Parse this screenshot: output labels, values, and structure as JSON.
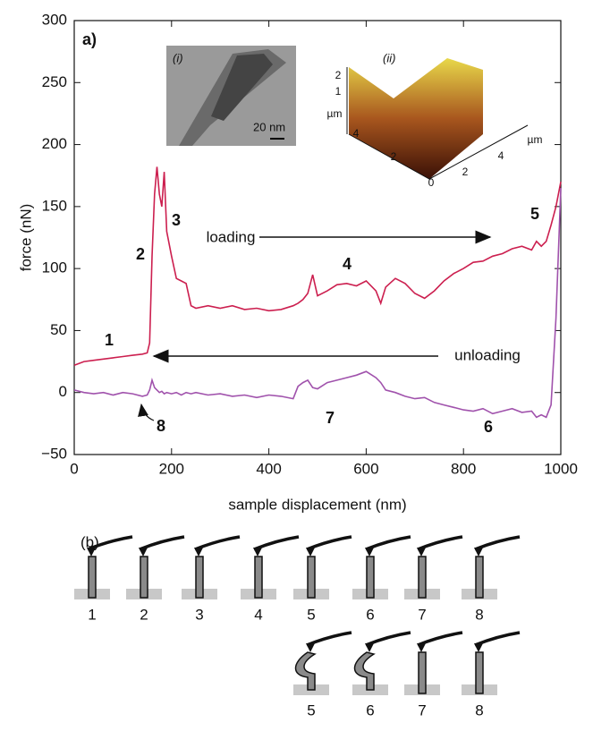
{
  "chart_data": {
    "type": "line",
    "x_label": "sample displacement (nm)",
    "y_label": "force (nN)",
    "xlim": [
      0,
      1000
    ],
    "xticks": [
      0,
      200,
      400,
      600,
      800,
      1000
    ],
    "ylim": [
      -50,
      300
    ],
    "yticks": [
      {
        "value": -50,
        "label": "−50"
      },
      0,
      50,
      100,
      150,
      200,
      250,
      300
    ],
    "x": [
      0,
      20,
      40,
      60,
      80,
      100,
      120,
      140,
      150,
      155,
      160,
      165,
      170,
      175,
      180,
      185,
      190,
      200,
      210,
      220,
      230,
      240,
      250,
      275,
      300,
      325,
      350,
      375,
      400,
      425,
      450,
      460,
      470,
      480,
      490,
      500,
      520,
      540,
      560,
      580,
      600,
      620,
      630,
      640,
      660,
      680,
      700,
      720,
      740,
      760,
      780,
      800,
      820,
      840,
      860,
      880,
      900,
      920,
      940,
      950,
      960,
      970,
      980,
      990,
      1000
    ],
    "series": [
      {
        "color": "#cc1f4f",
        "values": [
          22,
          25,
          26,
          27,
          28,
          29,
          30,
          31,
          32,
          40,
          110,
          160,
          182,
          160,
          150,
          178,
          130,
          110,
          92,
          90,
          88,
          70,
          68,
          70,
          68,
          70,
          67,
          68,
          66,
          67,
          70,
          72,
          75,
          80,
          95,
          78,
          82,
          87,
          88,
          86,
          90,
          82,
          72,
          85,
          92,
          88,
          80,
          76,
          82,
          90,
          96,
          100,
          105,
          106,
          110,
          112,
          116,
          118,
          115,
          122,
          118,
          122,
          135,
          150,
          170
        ]
      },
      {
        "color": "#a052ac",
        "values": [
          2,
          0,
          -1,
          0,
          -2,
          0,
          -1,
          -3,
          -2,
          2,
          10,
          4,
          2,
          0,
          1,
          -1,
          0,
          -1,
          0,
          -2,
          0,
          -1,
          0,
          -2,
          -1,
          -3,
          -2,
          -4,
          -2,
          -3,
          -5,
          5,
          8,
          10,
          4,
          3,
          8,
          10,
          12,
          14,
          17,
          12,
          8,
          2,
          0,
          -3,
          -5,
          -4,
          -8,
          -10,
          -12,
          -14,
          -15,
          -13,
          -17,
          -15,
          -13,
          -16,
          -15,
          -20,
          -18,
          -20,
          -10,
          60,
          165
        ]
      }
    ],
    "annotations": [
      "a)",
      "1",
      "2",
      "3",
      "4",
      "5",
      "6",
      "7",
      "8",
      "loading",
      "unloading"
    ],
    "insets": {
      "i": {
        "label": "(i)",
        "scale": "20 nm"
      },
      "ii": {
        "label": "(ii)",
        "texts": [
          "2",
          "1",
          "µm",
          "4",
          "2",
          "0",
          "2",
          "4",
          "µm"
        ]
      }
    }
  },
  "panel_b": {
    "label": "(b)",
    "row1": [
      "1",
      "2",
      "3",
      "4",
      "5",
      "6",
      "7",
      "8"
    ],
    "row2": [
      "5",
      "6",
      "7",
      "8"
    ]
  }
}
